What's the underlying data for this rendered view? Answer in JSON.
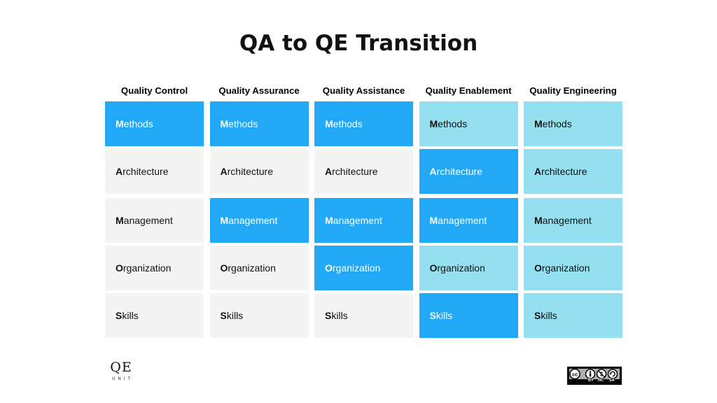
{
  "title": "QA to QE Transition",
  "colors": {
    "gray": "#f4f4f4",
    "blue": "#21a9f8",
    "light": "#94e0f0"
  },
  "columns": [
    {
      "header": "Quality Control",
      "cells": [
        "blue",
        "gray",
        "gray",
        "gray",
        "gray"
      ]
    },
    {
      "header": "Quality Assurance",
      "cells": [
        "blue",
        "gray",
        "blue",
        "gray",
        "gray"
      ]
    },
    {
      "header": "Quality Assistance",
      "cells": [
        "blue",
        "gray",
        "blue",
        "blue",
        "gray"
      ]
    },
    {
      "header": "Quality Enablement",
      "cells": [
        "light",
        "blue",
        "blue",
        "light",
        "blue"
      ]
    },
    {
      "header": "Quality Engineering",
      "cells": [
        "light",
        "light",
        "light",
        "light",
        "light"
      ]
    }
  ],
  "rows": [
    {
      "initial": "M",
      "rest": "ethods"
    },
    {
      "initial": "A",
      "rest": "rchitecture"
    },
    {
      "initial": "M",
      "rest": "anagement"
    },
    {
      "initial": "O",
      "rest": "rganization"
    },
    {
      "initial": "S",
      "rest": "kills"
    }
  ],
  "logo": {
    "main": "QE",
    "sub": "UNIT"
  },
  "license": {
    "parts": [
      "BY",
      "NC",
      "SA"
    ]
  }
}
